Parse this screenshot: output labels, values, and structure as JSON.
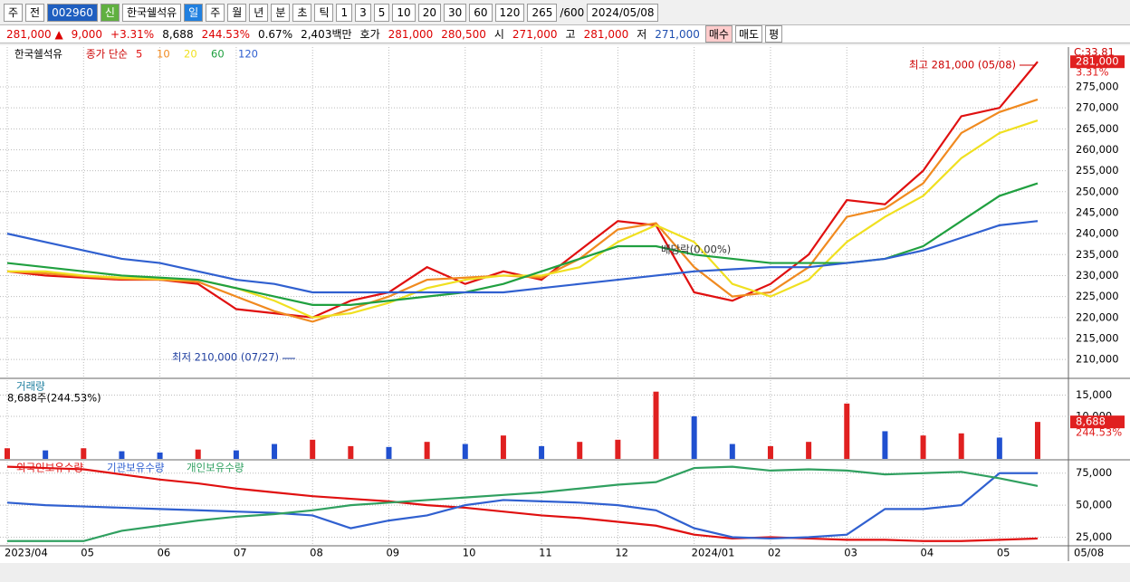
{
  "toolbar": {
    "row1": [
      "주",
      "전",
      "002960",
      "신",
      "한국쉘석유",
      "일",
      "주",
      "월",
      "년",
      "분",
      "초",
      "틱",
      "1",
      "3",
      "5",
      "10",
      "20",
      "30",
      "60",
      "120",
      "265",
      "/600",
      "2024/05/08"
    ],
    "row2": [
      "281,000 ▲",
      "9,000",
      "+3.31%",
      "8,688",
      "244.53%",
      "0.67%",
      "2,403백만",
      "호가",
      "281,000",
      "280,500",
      "시",
      "271,000",
      "고",
      "281,000",
      "저",
      "271,000",
      "매수",
      "매도",
      "평"
    ]
  },
  "chart_data": [
    {
      "type": "line",
      "title": "한국쉘석유",
      "indicator": "종가 단순",
      "ylim": [
        205700,
        284500
      ],
      "yticks": [
        {
          "value": 210000,
          "label": "210,000"
        },
        {
          "value": 215000,
          "label": "215,000"
        },
        {
          "value": 220000,
          "label": "220,000"
        },
        {
          "value": 225000,
          "label": "225,000"
        },
        {
          "value": 230000,
          "label": "230,000"
        },
        {
          "value": 235000,
          "label": "235,000"
        },
        {
          "value": 240000,
          "label": "240,000"
        },
        {
          "value": 245000,
          "label": "245,000"
        },
        {
          "value": 250000,
          "label": "250,000"
        },
        {
          "value": 255000,
          "label": "255,000"
        },
        {
          "value": 260000,
          "label": "260,000"
        },
        {
          "value": 265000,
          "label": "265,000"
        },
        {
          "value": 270000,
          "label": "270,000"
        },
        {
          "value": 275000,
          "label": "275,000"
        }
      ],
      "grid": true,
      "series": [
        {
          "name": "5",
          "color": "#e01010",
          "values": [
            231000,
            230000,
            229500,
            229000,
            229000,
            228000,
            222000,
            221000,
            220000,
            224000,
            226000,
            232000,
            228000,
            231000,
            229000,
            236000,
            243000,
            242000,
            226000,
            224000,
            228000,
            235000,
            248000,
            247000,
            255000,
            268000,
            270000,
            281000
          ]
        },
        {
          "name": "10",
          "color": "#f08a20",
          "values": [
            231000,
            230500,
            229800,
            229200,
            229000,
            228500,
            225000,
            221500,
            219000,
            222000,
            225000,
            229000,
            229500,
            230000,
            229500,
            234000,
            241000,
            242500,
            232000,
            225000,
            226000,
            232000,
            244000,
            246000,
            252000,
            264000,
            269000,
            272000
          ]
        },
        {
          "name": "20",
          "color": "#f0e020",
          "values": [
            231000,
            231000,
            230000,
            229500,
            229200,
            229000,
            227000,
            224000,
            220000,
            221000,
            223500,
            227000,
            229000,
            230000,
            230000,
            232000,
            238000,
            242000,
            238000,
            228000,
            225000,
            229000,
            238000,
            244000,
            249000,
            258000,
            264000,
            267000
          ]
        },
        {
          "name": "60",
          "color": "#20a040",
          "values": [
            233000,
            232000,
            231000,
            230000,
            229500,
            229000,
            227000,
            225000,
            223000,
            223000,
            224000,
            225000,
            226000,
            228000,
            231000,
            234000,
            237000,
            237000,
            235000,
            234000,
            233000,
            233000,
            233000,
            234000,
            237000,
            243000,
            249000,
            252000
          ]
        },
        {
          "name": "120",
          "color": "#3060d0",
          "values": [
            240000,
            238000,
            236000,
            234000,
            233000,
            231000,
            229000,
            228000,
            226000,
            226000,
            226000,
            226000,
            226000,
            226000,
            227000,
            228000,
            229000,
            230000,
            231000,
            231500,
            232000,
            232000,
            233000,
            234000,
            236000,
            239000,
            242000,
            243000
          ]
        }
      ],
      "annotations": [
        "최고 281,000 (05/08)",
        "최저 210,000 (07/27)",
        "배당락(0.00%)"
      ],
      "corner_label": "C:33.81",
      "last_value_label": "281,000",
      "last_change": "3.31%"
    },
    {
      "type": "bar",
      "title": "거래량",
      "subtitle": "8,688주(244.53%)",
      "ylim": [
        0,
        18500
      ],
      "yticks": [
        {
          "value": 10000,
          "label": "10,000"
        },
        {
          "value": 15000,
          "label": "15,000"
        }
      ],
      "values": [
        2500,
        2000,
        2500,
        1800,
        1500,
        2200,
        2000,
        3500,
        4500,
        3000,
        2800,
        4000,
        3500,
        5500,
        3000,
        4000,
        4500,
        15800,
        10000,
        3500,
        3000,
        4000,
        13000,
        6500,
        5500,
        6000,
        5000,
        8688
      ],
      "bar_colors": [
        "#e02020",
        "#2050d0",
        "#e02020",
        "#2050d0",
        "#2050d0",
        "#e02020",
        "#2050d0",
        "#2050d0",
        "#e02020",
        "#e02020",
        "#2050d0",
        "#e02020",
        "#2050d0",
        "#e02020",
        "#2050d0",
        "#e02020",
        "#e02020",
        "#e02020",
        "#2050d0",
        "#2050d0",
        "#e02020",
        "#e02020",
        "#e02020",
        "#2050d0",
        "#e02020",
        "#e02020",
        "#2050d0",
        "#e02020"
      ],
      "last_value_label": "8,688",
      "last_change": "244.53%"
    },
    {
      "type": "line",
      "ylim": [
        19000,
        84000
      ],
      "yticks": [
        {
          "value": 25000,
          "label": "25,000"
        },
        {
          "value": 50000,
          "label": "50,000"
        },
        {
          "value": 75000,
          "label": "75,000"
        }
      ],
      "categories": [
        "2023/04",
        null,
        "05",
        null,
        "06",
        null,
        "07",
        null,
        "08",
        null,
        "09",
        null,
        "10",
        null,
        "11",
        null,
        "12",
        null,
        "2024/01",
        null,
        "02",
        null,
        "03",
        null,
        "04",
        null,
        "05",
        null
      ],
      "cursor_label": "05/08",
      "series": [
        {
          "name": "외국인보유수량",
          "color": "#e01010",
          "values": [
            80000,
            79000,
            78000,
            74000,
            70000,
            67000,
            63000,
            60000,
            57000,
            55000,
            53000,
            50000,
            48000,
            45000,
            42000,
            40000,
            37000,
            34000,
            27000,
            24000,
            25000,
            24000,
            23000,
            23000,
            22000,
            22000,
            23000,
            24000
          ]
        },
        {
          "name": "기관보유수량",
          "color": "#3060d0",
          "values": [
            52000,
            50000,
            49000,
            48000,
            47000,
            46000,
            45000,
            44000,
            42000,
            32000,
            38000,
            42000,
            50000,
            54000,
            53000,
            52000,
            50000,
            46000,
            32000,
            25000,
            24000,
            25000,
            27000,
            47000,
            47000,
            50000,
            75000,
            75000
          ]
        },
        {
          "name": "개인보유수량",
          "color": "#30a060",
          "values": [
            22000,
            22000,
            22000,
            30000,
            34000,
            38000,
            41000,
            43000,
            46000,
            50000,
            52000,
            54000,
            56000,
            58000,
            60000,
            63000,
            66000,
            68000,
            79000,
            80000,
            77000,
            78000,
            77000,
            74000,
            75000,
            76000,
            71000,
            65000
          ]
        }
      ]
    }
  ]
}
